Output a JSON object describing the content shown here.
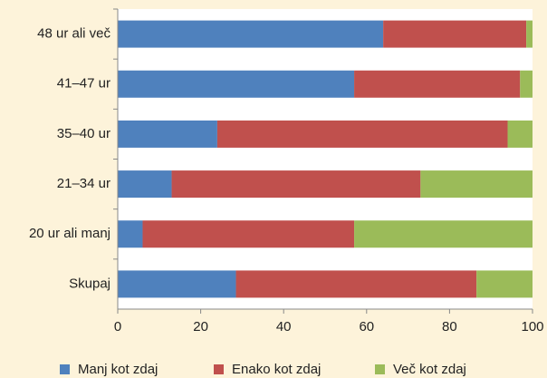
{
  "chart_data": {
    "type": "stacked-bar-horizontal",
    "categories": [
      "48 ur ali več",
      "41–47 ur",
      "35–40 ur",
      "21–34 ur",
      "20 ur ali manj",
      "Skupaj"
    ],
    "series": [
      {
        "name": "Manj kot zdaj",
        "color": "#4f81bd",
        "values": [
          64,
          57,
          24,
          13,
          6,
          28.5
        ]
      },
      {
        "name": "Enako kot zdaj",
        "color": "#c0504d",
        "values": [
          34.5,
          40,
          70,
          60,
          51,
          58
        ]
      },
      {
        "name": "Več kot zdaj",
        "color": "#9bbb59",
        "values": [
          1.5,
          3,
          6,
          27,
          43,
          13.5
        ]
      }
    ],
    "xlim": [
      0,
      100
    ],
    "xticks": [
      0,
      20,
      40,
      60,
      80,
      100
    ],
    "grid": false,
    "legend": "bottom"
  }
}
